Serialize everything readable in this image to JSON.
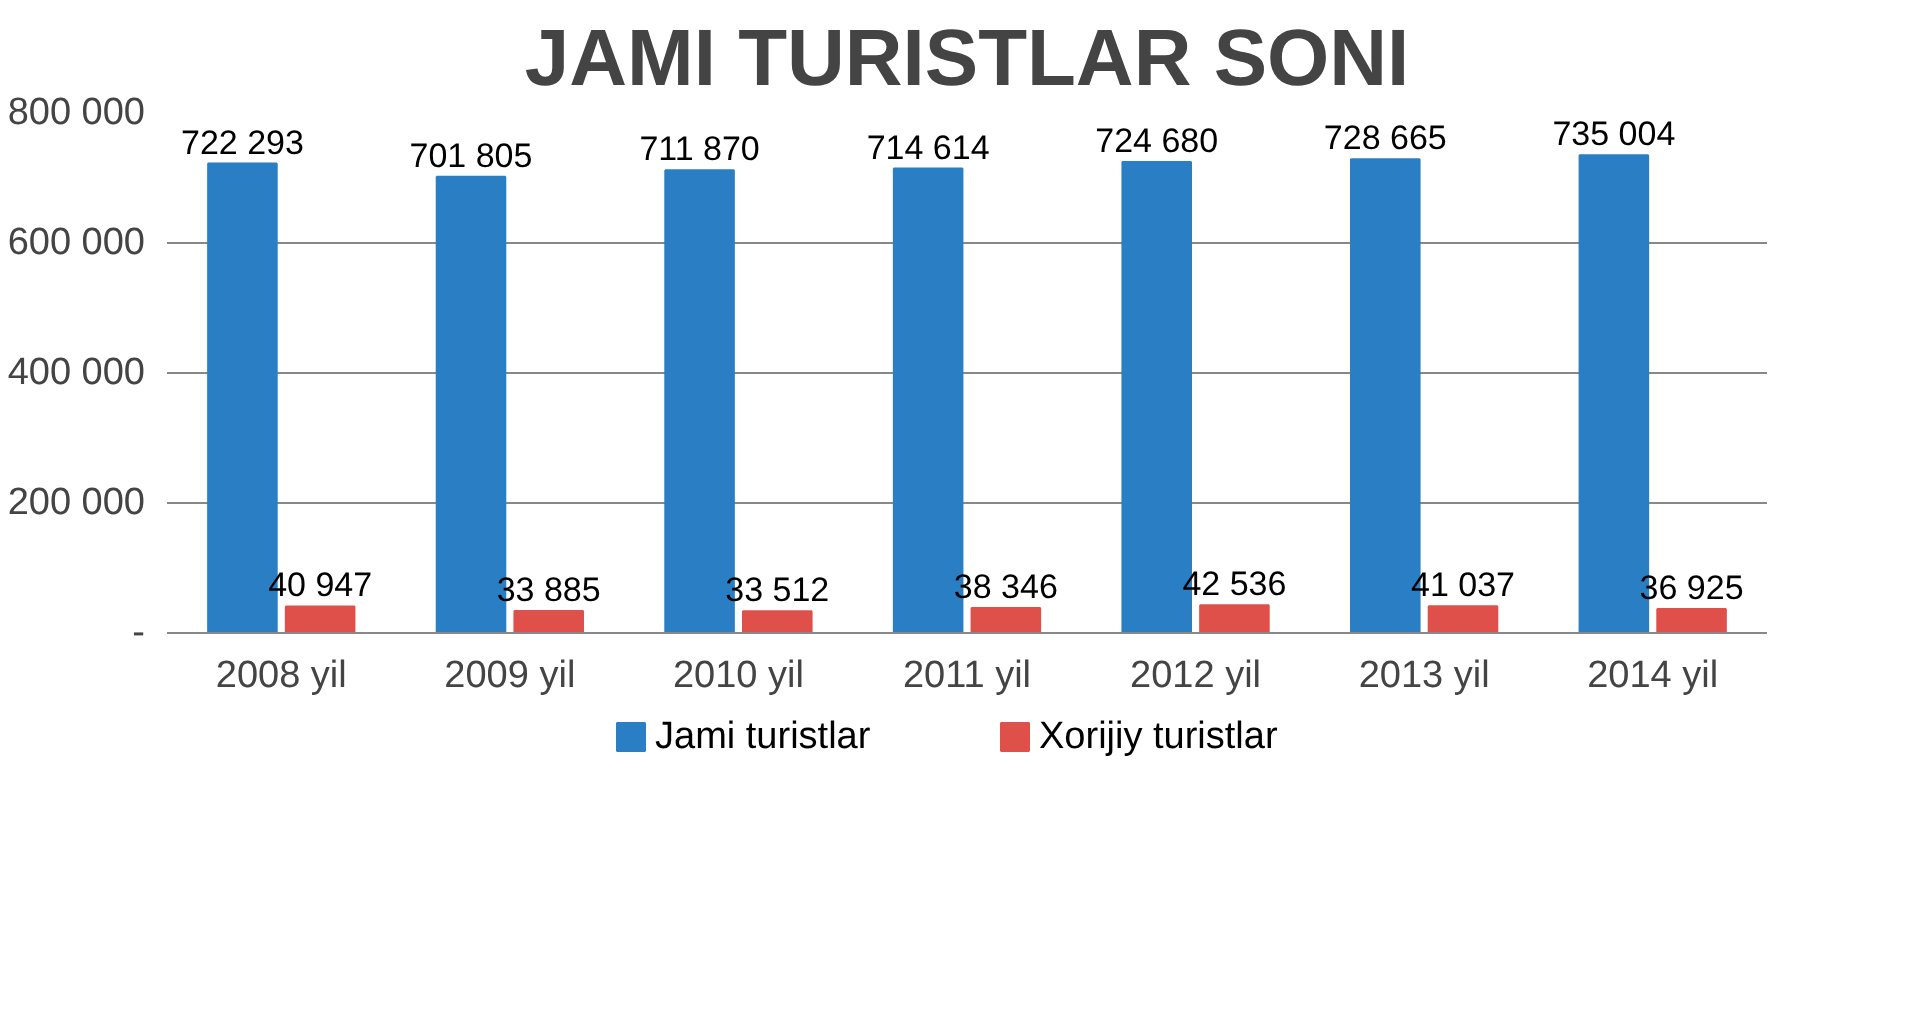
{
  "chart_data": {
    "type": "bar",
    "title": "JAMI TURISTLAR SONI",
    "categories": [
      "2008 yil",
      "2009 yil",
      "2010 yil",
      "2011 yil",
      "2012 yil",
      "2013 yil",
      "2014 yil"
    ],
    "series": [
      {
        "name": "Jami turistlar",
        "color": "#2a7fc4",
        "values": [
          722293,
          701805,
          711870,
          714614,
          724680,
          728665,
          735004
        ],
        "value_labels": [
          "722 293",
          "701 805",
          "711 870",
          "714 614",
          "724 680",
          "728 665",
          "735 004"
        ]
      },
      {
        "name": "Xorijiy turistlar",
        "color": "#e0504a",
        "values": [
          40947,
          33885,
          33512,
          38346,
          42536,
          41037,
          36925
        ],
        "value_labels": [
          "40 947",
          "33 885",
          "33 512",
          "38 346",
          "42 536",
          "41 037",
          "36 925"
        ]
      }
    ],
    "ylim": [
      0,
      800000
    ],
    "yticks": [
      {
        "value": 0,
        "label": "-"
      },
      {
        "value": 200000,
        "label": "200 000"
      },
      {
        "value": 400000,
        "label": "400 000"
      },
      {
        "value": 600000,
        "label": "600 000"
      },
      {
        "value": 800000,
        "label": "800 000"
      }
    ],
    "grid": "y",
    "legend": "bottom"
  }
}
